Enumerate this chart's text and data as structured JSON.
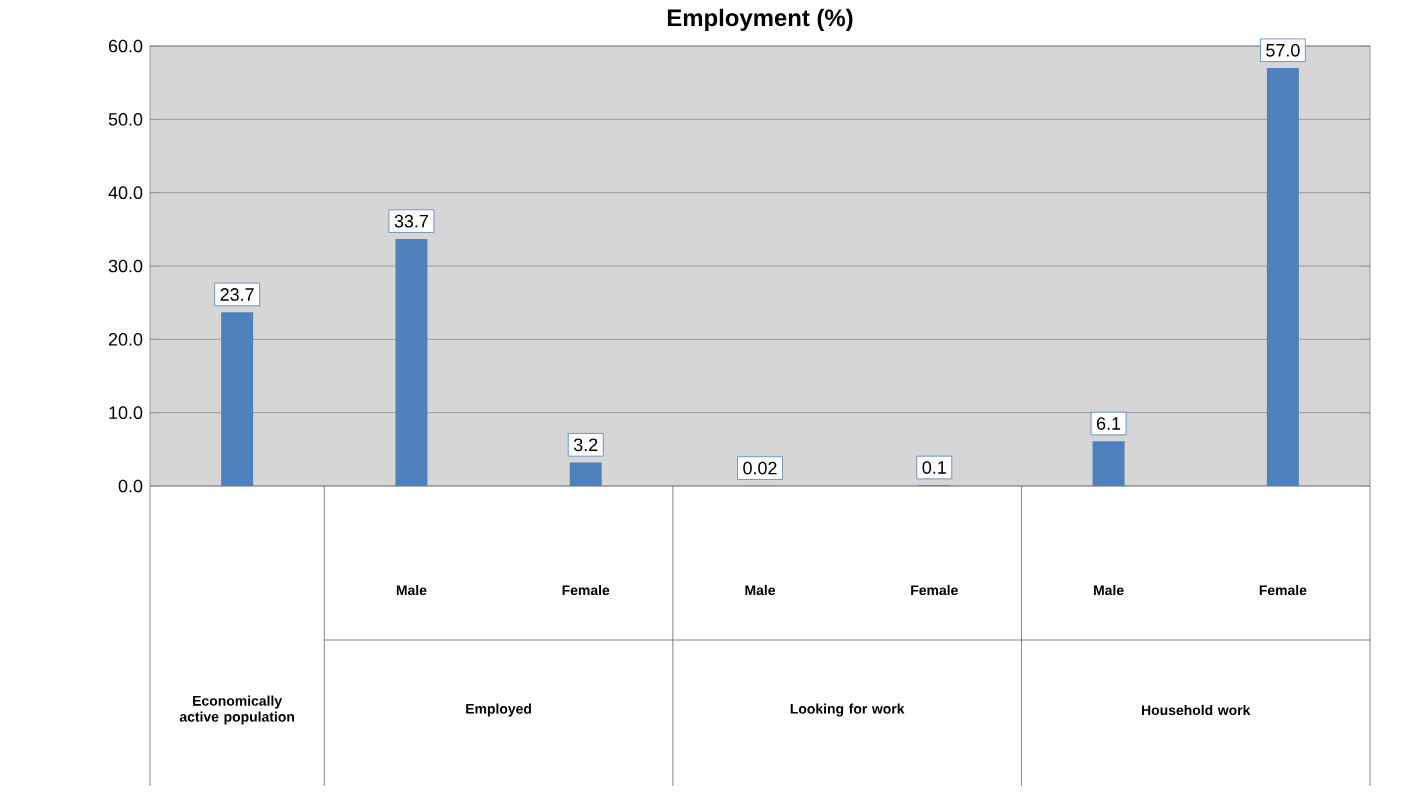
{
  "chart_data": {
    "type": "bar",
    "title": "Employment (%)",
    "categories": [
      null,
      "Male",
      "Female",
      "Male",
      "Female",
      "Male",
      "Female"
    ],
    "values": [
      23.7,
      33.7,
      3.2,
      0.02,
      0.1,
      6.1,
      57.0
    ],
    "value_labels": [
      "23.7",
      "33.7",
      "3.2",
      "0.02",
      "0.1",
      "6.1",
      "57.0"
    ],
    "color": "#4f81bd",
    "ylim": [
      0,
      60
    ],
    "yticks": [
      {
        "value": 0,
        "label": "0.0"
      },
      {
        "value": 10,
        "label": "10.0"
      },
      {
        "value": 20,
        "label": "20.0"
      },
      {
        "value": 30,
        "label": "30.0"
      },
      {
        "value": 40,
        "label": "40.0"
      },
      {
        "value": 50,
        "label": "50.0"
      },
      {
        "value": 60,
        "label": "60.0"
      }
    ],
    "grid": "y",
    "annotations": [
      "Economically active population",
      "Employed",
      "Looking for work",
      "Household work"
    ]
  }
}
